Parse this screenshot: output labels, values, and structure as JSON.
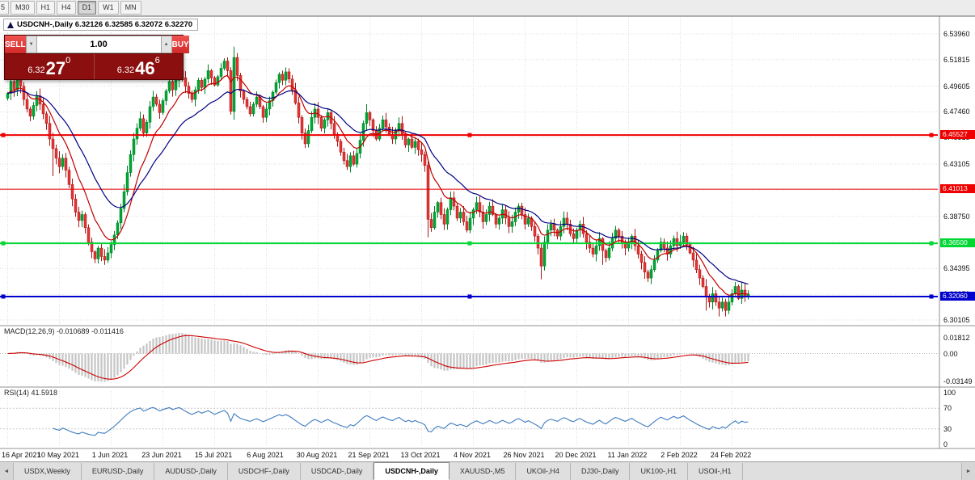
{
  "toolbar": {
    "timeframes": [
      {
        "label": "5",
        "active": false,
        "partial": true
      },
      {
        "label": "M30",
        "active": false,
        "partial": false
      },
      {
        "label": "H1",
        "active": false,
        "partial": false
      },
      {
        "label": "H4",
        "active": false,
        "partial": false
      },
      {
        "label": "D1",
        "active": true,
        "partial": false
      },
      {
        "label": "W1",
        "active": false,
        "partial": false
      },
      {
        "label": "MN",
        "active": false,
        "partial": false
      }
    ]
  },
  "quote_line": {
    "text": "USDCNH-,Daily 6.32126 6.32585 6.32072 6.32270"
  },
  "trade_widget": {
    "sell_label": "SELL",
    "buy_label": "BUY",
    "volume": "1.00",
    "spin_down": "▼",
    "spin_up": "▲",
    "sell_price": {
      "handle": "6.32",
      "pips": "27",
      "fraction": "0"
    },
    "buy_price": {
      "handle": "6.32",
      "pips": "46",
      "fraction": "6"
    }
  },
  "chart_data": {
    "type": "candlestick",
    "title": "USDCNH-,Daily",
    "current_bar_ohlc": [
      "6.32126",
      "6.32585",
      "6.32072",
      "6.32270"
    ],
    "y_axis_ticks": [
      "6.53960",
      "6.51815",
      "6.49605",
      "6.47460",
      "6.45315",
      "6.43105",
      "6.40960",
      "6.38750",
      "6.36605",
      "6.34395",
      "6.32250",
      "6.30105"
    ],
    "y_range": [
      6.297,
      6.5531
    ],
    "x_labels": [
      {
        "i": 0,
        "label": "16 Apr 2021"
      },
      {
        "i": 16,
        "label": "10 May 2021"
      },
      {
        "i": 32,
        "label": "1 Jun 2021"
      },
      {
        "i": 48,
        "label": "23 Jun 2021"
      },
      {
        "i": 64,
        "label": "15 Jul 2021"
      },
      {
        "i": 80,
        "label": "6 Aug 2021"
      },
      {
        "i": 96,
        "label": "30 Aug 2021"
      },
      {
        "i": 112,
        "label": "21 Sep 2021"
      },
      {
        "i": 128,
        "label": "13 Oct 2021"
      },
      {
        "i": 144,
        "label": "4 Nov 2021"
      },
      {
        "i": 160,
        "label": "26 Nov 2021"
      },
      {
        "i": 176,
        "label": "20 Dec 2021"
      },
      {
        "i": 192,
        "label": "11 Jan 2022"
      },
      {
        "i": 208,
        "label": "2 Feb 2022"
      },
      {
        "i": 224,
        "label": "24 Feb 2022"
      }
    ],
    "first_open": 6.486,
    "closes": [
      6.49,
      6.5,
      6.493,
      6.504,
      6.496,
      6.485,
      6.477,
      6.471,
      6.48,
      6.488,
      6.481,
      6.473,
      6.465,
      6.452,
      6.444,
      6.436,
      6.429,
      6.436,
      6.426,
      6.414,
      6.402,
      6.391,
      6.384,
      6.389,
      6.378,
      6.366,
      6.358,
      6.352,
      6.361,
      6.354,
      6.351,
      6.357,
      6.364,
      6.372,
      6.382,
      6.394,
      6.408,
      6.424,
      6.439,
      6.452,
      6.461,
      6.469,
      6.457,
      6.466,
      6.479,
      6.487,
      6.481,
      6.474,
      6.484,
      6.492,
      6.5,
      6.493,
      6.501,
      6.509,
      6.503,
      6.496,
      6.49,
      6.485,
      6.493,
      6.501,
      6.495,
      6.502,
      6.509,
      6.503,
      6.497,
      6.504,
      6.511,
      6.517,
      6.509,
      6.475,
      6.52,
      6.505,
      6.492,
      6.485,
      6.479,
      6.473,
      6.481,
      6.487,
      6.479,
      6.47,
      6.477,
      6.484,
      6.491,
      6.499,
      6.506,
      6.501,
      6.508,
      6.502,
      6.493,
      6.482,
      6.47,
      6.457,
      6.448,
      6.459,
      6.47,
      6.477,
      6.47,
      6.461,
      6.468,
      6.474,
      6.465,
      6.456,
      6.45,
      6.441,
      6.434,
      6.429,
      6.438,
      6.431,
      6.44,
      6.451,
      6.465,
      6.474,
      6.468,
      6.459,
      6.452,
      6.461,
      6.468,
      6.462,
      6.456,
      6.452,
      6.459,
      6.465,
      6.456,
      6.447,
      6.452,
      6.445,
      6.45,
      6.443,
      6.439,
      6.43,
      6.385,
      6.378,
      6.391,
      6.399,
      6.389,
      6.381,
      6.393,
      6.403,
      6.396,
      6.386,
      6.391,
      6.383,
      6.376,
      6.386,
      6.393,
      6.399,
      6.391,
      6.383,
      6.389,
      6.396,
      6.389,
      6.381,
      6.386,
      6.393,
      6.386,
      6.379,
      6.383,
      6.391,
      6.396,
      6.389,
      6.381,
      6.386,
      6.379,
      6.371,
      6.361,
      6.346,
      6.366,
      6.376,
      6.381,
      6.376,
      6.371,
      6.379,
      6.386,
      6.381,
      6.373,
      6.369,
      6.376,
      6.381,
      6.373,
      6.366,
      6.361,
      6.356,
      6.363,
      6.369,
      6.359,
      6.353,
      6.361,
      6.369,
      6.376,
      6.371,
      6.366,
      6.361,
      6.366,
      6.371,
      6.363,
      6.356,
      6.349,
      6.341,
      6.336,
      6.343,
      6.351,
      6.359,
      6.366,
      6.361,
      6.356,
      6.363,
      6.369,
      6.363,
      6.366,
      6.371,
      6.364,
      6.357,
      6.351,
      6.343,
      6.336,
      6.329,
      6.321,
      6.316,
      6.323,
      6.316,
      6.311,
      6.316,
      6.309,
      6.316,
      6.323,
      6.329,
      6.319,
      6.326,
      6.321,
      6.3227
    ],
    "wick_overrides": {
      "3": {
        "h": 6.512
      },
      "14": {
        "l": 6.421
      },
      "30": {
        "l": 6.347
      },
      "53": {
        "h": 6.518
      },
      "70": {
        "h": 6.529,
        "l": 6.468
      },
      "111": {
        "h": 6.481
      },
      "130": {
        "l": 6.37
      },
      "165": {
        "l": 6.335
      },
      "184": {
        "l": 6.347
      },
      "199": {
        "l": 6.331
      },
      "216": {
        "l": 6.309
      },
      "220": {
        "l": 6.304
      },
      "222": {
        "l": 6.304
      },
      "227": {
        "h": 6.333
      }
    },
    "candle_colors": {
      "up": "#00a832",
      "up_border": "#00802a",
      "down": "#e53535",
      "down_border": "#aa1616"
    },
    "moving_averages": [
      {
        "name": "MA fast",
        "period": 10,
        "color": "#c00000"
      },
      {
        "name": "MA slow",
        "period": 24,
        "color": "#000080"
      }
    ],
    "levels": [
      {
        "value": 6.45527,
        "label": "6.45527",
        "color": "#ee0000",
        "width": 2,
        "handles": true
      },
      {
        "value": 6.41013,
        "label": "6.41013",
        "color": "#ee0000",
        "width": 1,
        "handles": false
      },
      {
        "value": 6.365,
        "label": "6.36500",
        "color": "#00d733",
        "width": 2,
        "handles": true
      },
      {
        "value": 6.3206,
        "label": "6.32060",
        "color": "#0000cc",
        "width": 2,
        "handles": true
      }
    ],
    "macd_panel": {
      "header": "MACD(12,26,9) -0.010689 -0.011416",
      "fast": 12,
      "slow": 26,
      "signal": 9,
      "values_display": [
        "-0.010689",
        "-0.011416"
      ],
      "range": [
        -0.035,
        0.025
      ],
      "axis": [
        {
          "v": 0.018125,
          "label": "0.01812"
        },
        {
          "v": 0,
          "label": "0.00"
        },
        {
          "v": -0.03149,
          "label": "-0.03149"
        }
      ],
      "histogram_color": "#c4c4c4",
      "signal_color": "#cc0000"
    },
    "rsi_panel": {
      "header": "RSI(14) 41.5918",
      "period": 14,
      "value_display": "41.5918",
      "levels": [
        70,
        30
      ],
      "axis": [
        {
          "v": 100,
          "label": "100"
        },
        {
          "v": 70,
          "label": "70"
        },
        {
          "v": 30,
          "label": "30"
        },
        {
          "v": 0,
          "label": "0"
        }
      ],
      "line_color": "#3e7bbf"
    }
  },
  "tabbar": {
    "scroll_left": "◄",
    "scroll_right": "►",
    "tabs": [
      {
        "label": "USDX,Weekly",
        "active": false
      },
      {
        "label": "EURUSD-,Daily",
        "active": false
      },
      {
        "label": "AUDUSD-,Daily",
        "active": false
      },
      {
        "label": "USDCHF-,Daily",
        "active": false
      },
      {
        "label": "USDCAD-,Daily",
        "active": false
      },
      {
        "label": "USDCNH-,Daily",
        "active": true
      },
      {
        "label": "XAUUSD-,M5",
        "active": false
      },
      {
        "label": "UKOil-,H4",
        "active": false
      },
      {
        "label": "DJ30-,Daily",
        "active": false
      },
      {
        "label": "UK100-,H1",
        "active": false
      },
      {
        "label": "USOil-,H1",
        "active": false
      }
    ]
  }
}
